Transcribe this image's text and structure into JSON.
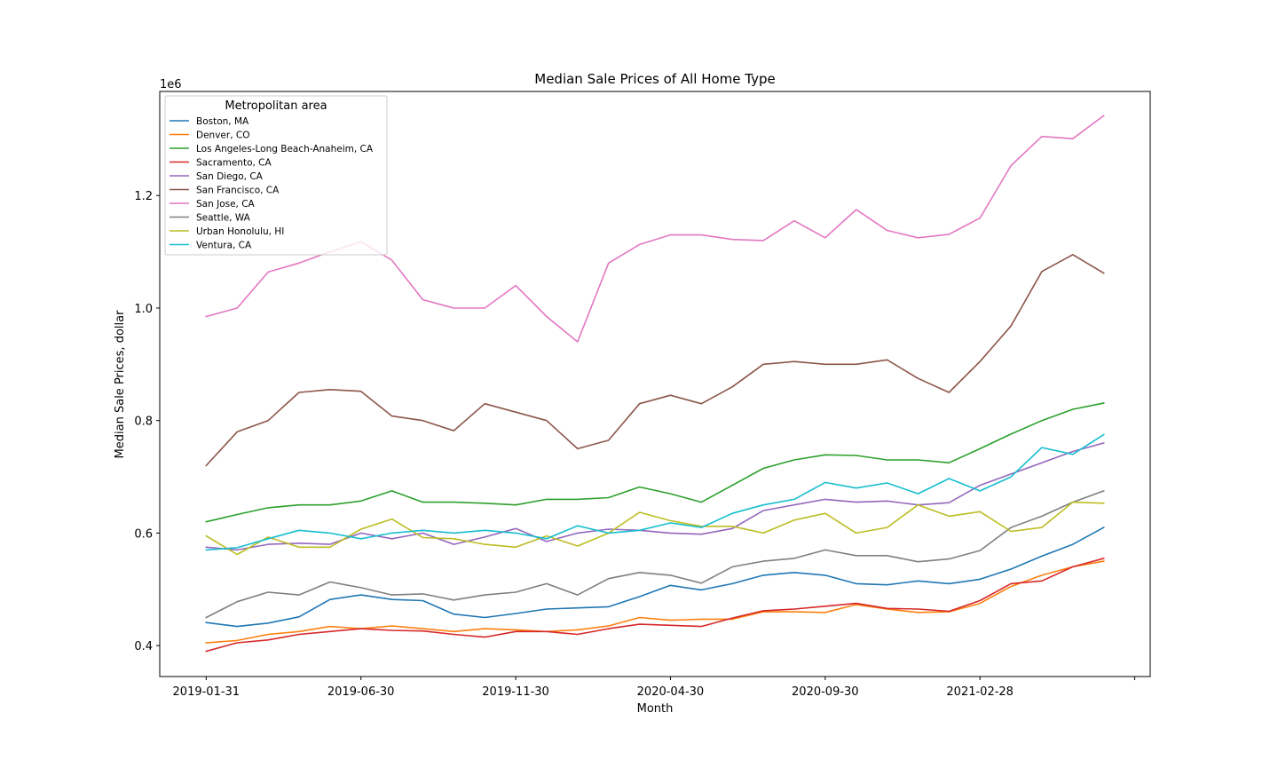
{
  "chart_data": {
    "type": "line",
    "title": "Median Sale Prices of All Home Type",
    "xlabel": "Month",
    "ylabel": "Median Sale Prices, dollar",
    "y_offset_label": "1e6",
    "x": [
      "2019-01-31",
      "2019-02-28",
      "2019-03-31",
      "2019-04-30",
      "2019-05-31",
      "2019-06-30",
      "2019-07-31",
      "2019-08-31",
      "2019-09-30",
      "2019-10-31",
      "2019-11-30",
      "2019-12-31",
      "2020-01-31",
      "2020-02-29",
      "2020-03-31",
      "2020-04-30",
      "2020-05-31",
      "2020-06-30",
      "2020-07-31",
      "2020-08-31",
      "2020-09-30",
      "2020-10-31",
      "2020-11-30",
      "2020-12-31",
      "2021-01-31",
      "2021-02-28",
      "2021-03-31",
      "2021-04-30",
      "2021-05-31",
      "2021-06-30"
    ],
    "x_ticks": [
      {
        "index": 0,
        "label": "2019-01-31"
      },
      {
        "index": 5,
        "label": "2019-06-30"
      },
      {
        "index": 10,
        "label": "2019-11-30"
      },
      {
        "index": 15,
        "label": "2020-04-30"
      },
      {
        "index": 20,
        "label": "2020-09-30"
      },
      {
        "index": 25,
        "label": "2021-02-28"
      },
      {
        "index": 30,
        "label": ""
      }
    ],
    "y_ticks": [
      {
        "value": 400000,
        "label": "0.4"
      },
      {
        "value": 600000,
        "label": "0.6"
      },
      {
        "value": 800000,
        "label": "0.8"
      },
      {
        "value": 1000000,
        "label": "1.0"
      },
      {
        "value": 1200000,
        "label": "1.2"
      }
    ],
    "xlim": [
      -1.5,
      30.5
    ],
    "ylim": [
      345000,
      1385000
    ],
    "grid": false,
    "legend_title": "Metropolitan area",
    "legend_position": "upper-left",
    "series": [
      {
        "name": "Boston, MA",
        "color": "#1f77b4",
        "values": [
          441000,
          434000,
          440000,
          451000,
          482000,
          490000,
          482000,
          480000,
          456000,
          450000,
          457000,
          465000,
          467000,
          469000,
          487000,
          507000,
          499000,
          510000,
          525000,
          530000,
          525000,
          510000,
          508000,
          515000,
          510000,
          518000,
          536000,
          559000,
          580000,
          610000
        ]
      },
      {
        "name": "Denver, CO",
        "color": "#ff7f0e",
        "values": [
          405000,
          409000,
          420000,
          425000,
          434000,
          430000,
          435000,
          430000,
          425000,
          430000,
          428000,
          425000,
          428000,
          435000,
          450000,
          445000,
          447000,
          447000,
          460000,
          460000,
          459000,
          473000,
          465000,
          459000,
          460000,
          475000,
          505000,
          525000,
          540000,
          550000
        ]
      },
      {
        "name": "Los Angeles-Long Beach-Anaheim, CA",
        "color": "#2ca02c",
        "values": [
          620000,
          633000,
          645000,
          650000,
          650000,
          657000,
          675000,
          655000,
          655000,
          653000,
          650000,
          660000,
          660000,
          663000,
          682000,
          670000,
          655000,
          685000,
          715000,
          730000,
          739000,
          738000,
          730000,
          730000,
          725000,
          750000,
          776000,
          800000,
          820000,
          831000
        ]
      },
      {
        "name": "Sacramento, CA",
        "color": "#d62728",
        "values": [
          390000,
          405000,
          410000,
          420000,
          425000,
          430000,
          427000,
          426000,
          420000,
          415000,
          425000,
          425000,
          420000,
          430000,
          438000,
          436000,
          434000,
          449000,
          462000,
          465000,
          470000,
          475000,
          466000,
          465000,
          461000,
          480000,
          510000,
          515000,
          540000,
          555000
        ]
      },
      {
        "name": "San Diego, CA",
        "color": "#9467bd",
        "values": [
          575000,
          570000,
          580000,
          582000,
          580000,
          600000,
          590000,
          600000,
          580000,
          593000,
          608000,
          585000,
          600000,
          607000,
          605000,
          600000,
          598000,
          608000,
          640000,
          650000,
          660000,
          655000,
          657000,
          650000,
          654000,
          685000,
          705000,
          725000,
          745000,
          760000
        ]
      },
      {
        "name": "San Francisco, CA",
        "color": "#8c564b",
        "values": [
          720000,
          780000,
          800000,
          850000,
          855000,
          852000,
          808000,
          800000,
          782000,
          830000,
          815000,
          800000,
          750000,
          765000,
          830000,
          845000,
          830000,
          860000,
          900000,
          905000,
          900000,
          900000,
          908000,
          875000,
          850000,
          905000,
          968000,
          1065000,
          1095000,
          1062000
        ]
      },
      {
        "name": "San Jose, CA",
        "color": "#e377c2",
        "values": [
          985000,
          1000000,
          1064000,
          1080000,
          1100000,
          1118000,
          1085000,
          1015000,
          1000000,
          1000000,
          1040000,
          985000,
          940000,
          1080000,
          1113000,
          1130000,
          1130000,
          1122000,
          1120000,
          1155000,
          1125000,
          1175000,
          1138000,
          1125000,
          1131000,
          1160000,
          1253000,
          1305000,
          1301000,
          1342000
        ]
      },
      {
        "name": "Seattle, WA",
        "color": "#7f7f7f",
        "values": [
          450000,
          478000,
          495000,
          490000,
          513000,
          503000,
          490000,
          492000,
          481000,
          490000,
          495000,
          510000,
          490000,
          519000,
          530000,
          525000,
          511000,
          540000,
          550000,
          555000,
          570000,
          560000,
          560000,
          549000,
          554000,
          569000,
          610000,
          630000,
          655000,
          675000
        ]
      },
      {
        "name": "Urban Honolulu, HI",
        "color": "#bcbd22",
        "values": [
          595000,
          562000,
          593000,
          575000,
          575000,
          607000,
          625000,
          592000,
          590000,
          580000,
          575000,
          595000,
          577000,
          600000,
          637000,
          622000,
          612000,
          612000,
          600000,
          623000,
          635000,
          600000,
          610000,
          650000,
          630000,
          638000,
          603000,
          610000,
          655000,
          653000
        ]
      },
      {
        "name": "Ventura, CA",
        "color": "#17becf",
        "values": [
          570000,
          574000,
          590000,
          605000,
          600000,
          590000,
          600000,
          605000,
          600000,
          605000,
          600000,
          590000,
          613000,
          600000,
          605000,
          618000,
          610000,
          635000,
          650000,
          660000,
          690000,
          680000,
          689000,
          670000,
          697000,
          675000,
          700000,
          752000,
          740000,
          775000
        ]
      }
    ]
  }
}
